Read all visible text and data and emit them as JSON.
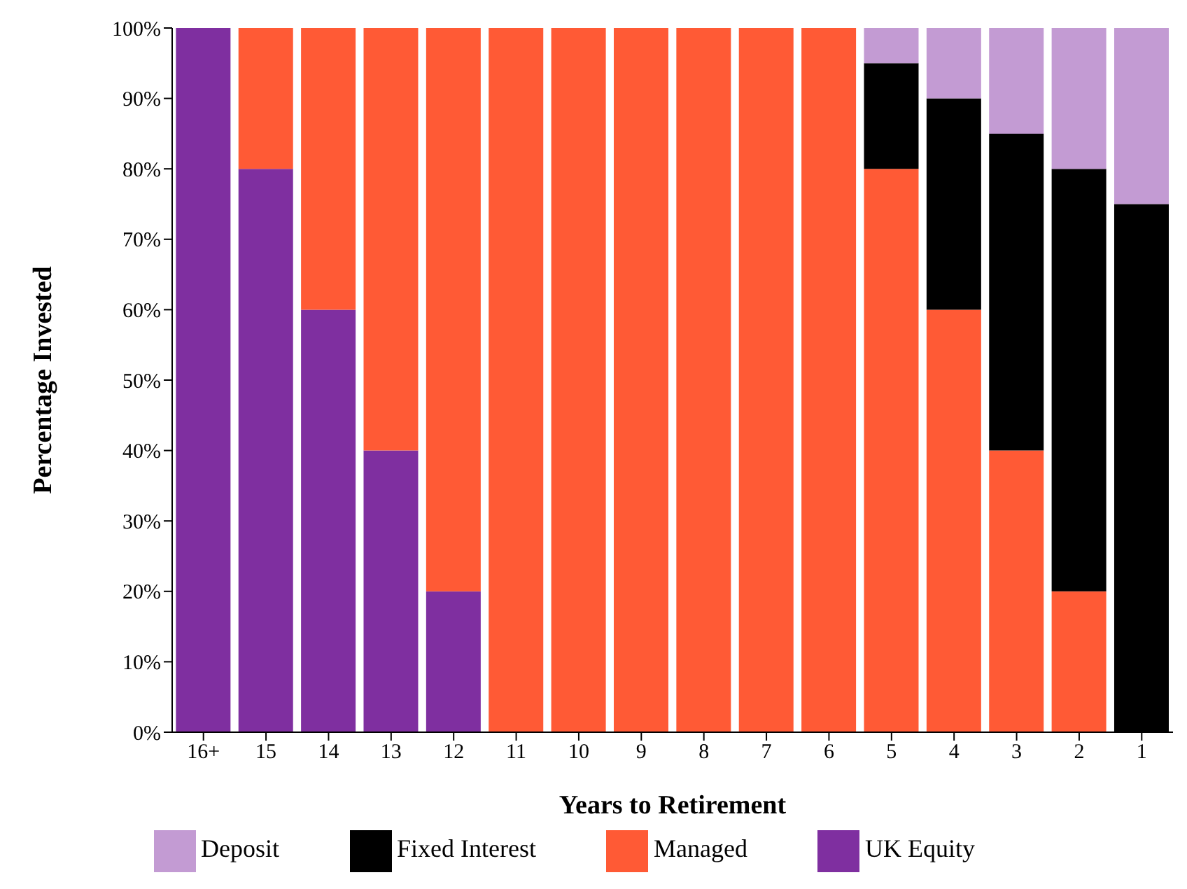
{
  "chart_data": {
    "type": "bar",
    "stacked": true,
    "xlabel": "Years to Retirement",
    "ylabel": "Percentage Invested",
    "categories": [
      "16+",
      "15",
      "14",
      "13",
      "12",
      "11",
      "10",
      "9",
      "8",
      "7",
      "6",
      "5",
      "4",
      "3",
      "2",
      "1"
    ],
    "series": [
      {
        "name": "UK Equity",
        "color": "#7f2fa0",
        "values": [
          100,
          80,
          60,
          40,
          20,
          0,
          0,
          0,
          0,
          0,
          0,
          0,
          0,
          0,
          0,
          0
        ]
      },
      {
        "name": "Managed",
        "color": "#ff5a35",
        "values": [
          0,
          20,
          40,
          60,
          80,
          100,
          100,
          100,
          100,
          100,
          100,
          80,
          60,
          40,
          20,
          0
        ]
      },
      {
        "name": "Fixed Interest",
        "color": "#000000",
        "values": [
          0,
          0,
          0,
          0,
          0,
          0,
          0,
          0,
          0,
          0,
          0,
          15,
          30,
          45,
          60,
          75
        ]
      },
      {
        "name": "Deposit",
        "color": "#c39bd3",
        "values": [
          0,
          0,
          0,
          0,
          0,
          0,
          0,
          0,
          0,
          0,
          0,
          5,
          10,
          15,
          20,
          25
        ]
      }
    ],
    "ylim": [
      0,
      100
    ],
    "yticks": [
      {
        "value": 0,
        "label": "0%"
      },
      {
        "value": 10,
        "label": "10%"
      },
      {
        "value": 20,
        "label": "20%"
      },
      {
        "value": 30,
        "label": "30%"
      },
      {
        "value": 40,
        "label": "40%"
      },
      {
        "value": 50,
        "label": "50%"
      },
      {
        "value": 60,
        "label": "60%"
      },
      {
        "value": 70,
        "label": "70%"
      },
      {
        "value": 80,
        "label": "80%"
      },
      {
        "value": 90,
        "label": "90%"
      },
      {
        "value": 100,
        "label": "100%"
      }
    ],
    "grid": false,
    "legend": "bottom"
  }
}
